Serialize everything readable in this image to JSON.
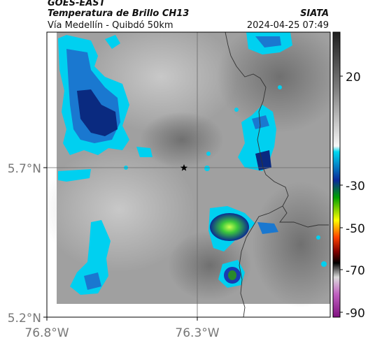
{
  "header": {
    "satellite": "GOES-EAST",
    "product": "Temperatura de Brillo CH13",
    "route": "Vía Medellín - Quibdó 50km",
    "org": "SIATA",
    "timestamp": "2024-04-25 07:49"
  },
  "axes": {
    "lat_ticks": [
      "5.7°N",
      "5.2°N"
    ],
    "lon_ticks": [
      "76.8°W",
      "76.3°W"
    ]
  },
  "colorbar": {
    "ticks": [
      "20",
      "-30",
      "-50",
      "-70",
      "-90"
    ],
    "colors": [
      "#222222",
      "#ffffff",
      "#00bfff",
      "#0a1a9a",
      "#00a000",
      "#ffff00",
      "#ff0000",
      "#000000",
      "#dcdcdc",
      "#a020a0"
    ]
  },
  "markers": [
    {
      "name": "star-marker",
      "icon": "star-icon"
    }
  ],
  "colors": {
    "background_gray": "#9e9e9e",
    "cyan": "#00d0f0",
    "blue": "#1060c0",
    "dark_blue": "#0a2a80",
    "green": "#2ab82a",
    "border_line": "#333333"
  }
}
